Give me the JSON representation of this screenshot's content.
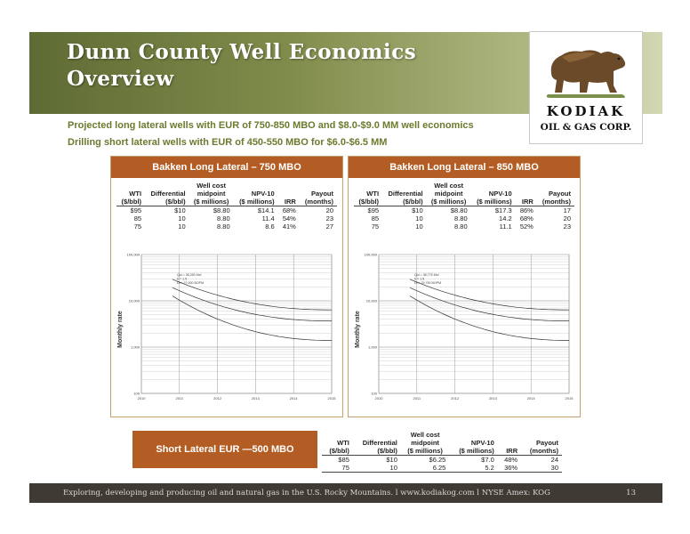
{
  "header": {
    "title_line1": "Dunn County Well Economics",
    "title_line2": "Overview"
  },
  "logo": {
    "name": "KODIAK",
    "subtitle": "OIL & GAS CORP.",
    "icon": "bear-icon"
  },
  "bullets": [
    "Projected long lateral wells with EUR of 750-850 MBO and $8.0-$9.0 MM well economics",
    "Drilling short lateral wells with EUR of 450-550 MBO for $6.0-$6.5 MM"
  ],
  "columns": [
    "WTI ($/bbl)",
    "Differential ($/bbl)",
    "Well cost midpoint ($ millions)",
    "NPV-10 ($ millions)",
    "IRR",
    "Payout (months)"
  ],
  "column_parts": [
    [
      "",
      "WTI",
      "($/bbl)"
    ],
    [
      "",
      "Differential",
      "($/bbl)"
    ],
    [
      "Well cost",
      "midpoint",
      "($ millions)"
    ],
    [
      "",
      "NPV-10",
      "($ millions)"
    ],
    [
      "",
      "",
      "IRR"
    ],
    [
      "",
      "Payout",
      "(months)"
    ]
  ],
  "panel_750": {
    "title": "Bakken Long Lateral – 750 MBO",
    "rows": [
      [
        "$95",
        "$10",
        "$8.80",
        "$14.1",
        "68%",
        "20"
      ],
      [
        "85",
        "10",
        "8.80",
        "11.4",
        "54%",
        "23"
      ],
      [
        "75",
        "10",
        "8.80",
        "8.6",
        "41%",
        "27"
      ]
    ],
    "chart": {
      "ylabel": "Monthly rate",
      "yticks": [
        "100,000",
        "10,000",
        "1,000",
        "100"
      ],
      "xticks": [
        "2010",
        "2011",
        "2012",
        "2013",
        "2014",
        "2015"
      ],
      "annotation": [
        "Qoi = 38,250 Mcf",
        "b = 1.5",
        "Di = 27,000 BOPM"
      ]
    }
  },
  "panel_850": {
    "title": "Bakken Long Lateral – 850 MBO",
    "rows": [
      [
        "$95",
        "$10",
        "$8.80",
        "$17.3",
        "86%",
        "17"
      ],
      [
        "85",
        "10",
        "8.80",
        "14.2",
        "68%",
        "20"
      ],
      [
        "75",
        "10",
        "8.80",
        "11.1",
        "52%",
        "23"
      ]
    ],
    "chart": {
      "ylabel": "Monthly rate",
      "yticks": [
        "100,000",
        "10,000",
        "1,000",
        "100"
      ],
      "xticks": [
        "2010",
        "2011",
        "2012",
        "2013",
        "2014",
        "2015"
      ],
      "annotation": [
        "Qoi = 38,775 Mcf",
        "b = 1.5",
        "Di = 29,750 BOPM"
      ]
    }
  },
  "short_lateral": {
    "title": "Short Lateral EUR —500 MBO",
    "rows": [
      [
        "$85",
        "$10",
        "$6.25",
        "$7.0",
        "48%",
        "24"
      ],
      [
        "75",
        "10",
        "6.25",
        "5.2",
        "36%",
        "30"
      ]
    ]
  },
  "footer": {
    "text": "Exploring, developing and producing oil and natural gas in the U.S. Rocky Mountains.  l  www.kodiakog.com  l  NYSE Amex: KOG",
    "page": "13"
  }
}
